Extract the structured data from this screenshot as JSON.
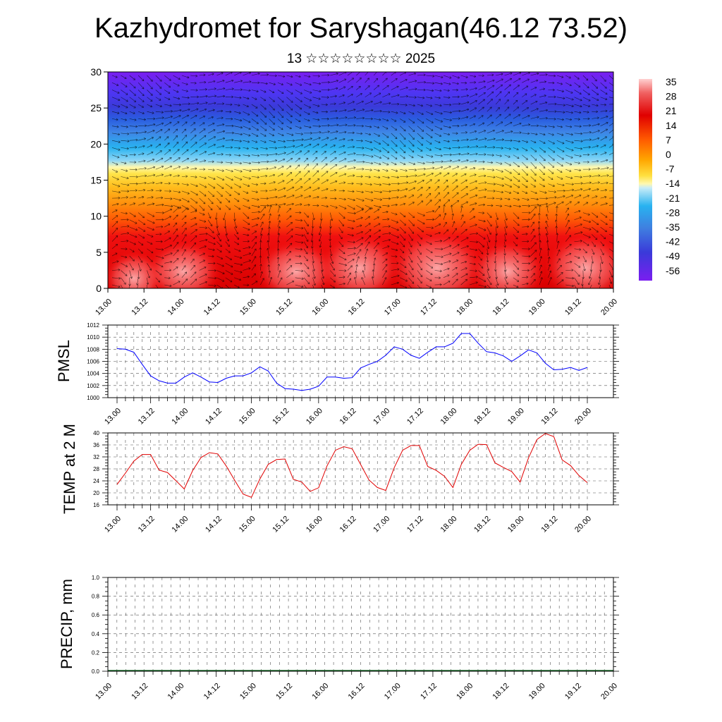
{
  "title": "Kazhydromet for Saryshagan(46.12 73.52)",
  "subtitle": "13 ☆☆☆☆☆☆☆☆ 2025",
  "time_ticks": [
    "13.00",
    "13.12",
    "14.00",
    "14.12",
    "15.00",
    "15.12",
    "16.00",
    "16.12",
    "17.00",
    "17.12",
    "18.00",
    "18.12",
    "19.00",
    "19.12",
    "20.00"
  ],
  "colors": {
    "pmsl_line": "#0000ff",
    "temp_line": "#e00000",
    "grid": "#555555"
  },
  "chart_data": [
    {
      "id": "cross-section",
      "type": "heatmap",
      "xlabel": "",
      "ylabel": "",
      "ylim": [
        0,
        30
      ],
      "yticks": [
        0,
        5,
        10,
        15,
        20,
        25,
        30
      ],
      "colorbar_labels": [
        "35",
        "28",
        "21",
        "14",
        "7",
        "0",
        "-7",
        "-14",
        "-21",
        "-28",
        "-35",
        "-42",
        "-49",
        "-56"
      ],
      "overlay": "wind vectors",
      "legend": "right"
    },
    {
      "id": "pmsl",
      "type": "line",
      "ylabel": "PMSL",
      "ylim": [
        1000,
        1012
      ],
      "yticks": [
        1000,
        1002,
        1004,
        1006,
        1008,
        1010,
        1012
      ],
      "x_hours": [
        0,
        3,
        6,
        9,
        12,
        15,
        18,
        21,
        24,
        27,
        30,
        33,
        36,
        39,
        42,
        45,
        48,
        51,
        54,
        57,
        60,
        63,
        66,
        69,
        72,
        75,
        78,
        81,
        84,
        87,
        90,
        93,
        96,
        99,
        102,
        105,
        108,
        111,
        114,
        117,
        120,
        123,
        126,
        129,
        132,
        135,
        138,
        141,
        144,
        147,
        150,
        153,
        156,
        159,
        162,
        165,
        168
      ],
      "values": [
        1008.1,
        1008.0,
        1007.5,
        1005.5,
        1003.6,
        1002.8,
        1002.4,
        1002.4,
        1003.4,
        1004.1,
        1003.4,
        1002.6,
        1002.5,
        1003.2,
        1003.6,
        1003.6,
        1004.1,
        1005.1,
        1004.4,
        1002.4,
        1001.5,
        1001.4,
        1001.2,
        1001.4,
        1001.9,
        1003.4,
        1003.4,
        1003.2,
        1003.3,
        1004.9,
        1005.5,
        1006.0,
        1007.0,
        1008.4,
        1008.0,
        1007.0,
        1006.5,
        1007.5,
        1008.4,
        1008.4,
        1009.0,
        1010.6,
        1010.6,
        1009.0,
        1007.6,
        1007.4,
        1006.9,
        1006.0,
        1006.9,
        1007.9,
        1007.4,
        1005.7,
        1004.6,
        1004.7,
        1005.0,
        1004.5,
        1005.0
      ],
      "grid": true,
      "grid_style": "dashed"
    },
    {
      "id": "temp",
      "type": "line",
      "ylabel": "TEMP at 2 M",
      "ylim": [
        16,
        40
      ],
      "yticks": [
        16,
        20,
        24,
        28,
        32,
        36,
        40
      ],
      "x_hours": [
        0,
        3,
        6,
        9,
        12,
        15,
        18,
        21,
        24,
        27,
        30,
        33,
        36,
        39,
        42,
        45,
        48,
        51,
        54,
        57,
        60,
        63,
        66,
        69,
        72,
        75,
        78,
        81,
        84,
        87,
        90,
        93,
        96,
        99,
        102,
        105,
        108,
        111,
        114,
        117,
        120,
        123,
        126,
        129,
        132,
        135,
        138,
        141,
        144,
        147,
        150,
        153,
        156,
        159,
        162,
        165,
        168
      ],
      "values": [
        22.8,
        26.6,
        30.6,
        32.8,
        32.8,
        27.6,
        26.8,
        24.1,
        21.3,
        27.4,
        31.8,
        33.4,
        33.0,
        29.0,
        24.2,
        19.6,
        18.5,
        24.6,
        29.5,
        31.1,
        31.3,
        24.5,
        23.6,
        20.5,
        21.7,
        29.0,
        34.2,
        35.4,
        34.7,
        29.5,
        24.3,
        21.8,
        20.8,
        28.4,
        34.2,
        35.8,
        35.8,
        28.8,
        27.5,
        25.5,
        21.8,
        29.5,
        34.2,
        36.2,
        36.1,
        30.0,
        28.5,
        27.1,
        23.6,
        31.7,
        37.8,
        39.8,
        38.8,
        31.0,
        29.1,
        25.8,
        23.4
      ],
      "grid": true,
      "grid_style": "dashed"
    },
    {
      "id": "precip",
      "type": "bar",
      "ylabel": "PRECIP, mm",
      "ylim": [
        0.0,
        1.0
      ],
      "ytick_labels": [
        "0.0",
        "0.2",
        "0.4",
        "0.6",
        "0.8",
        "1.0"
      ],
      "values": [],
      "grid": true,
      "grid_style": "dashed"
    }
  ]
}
